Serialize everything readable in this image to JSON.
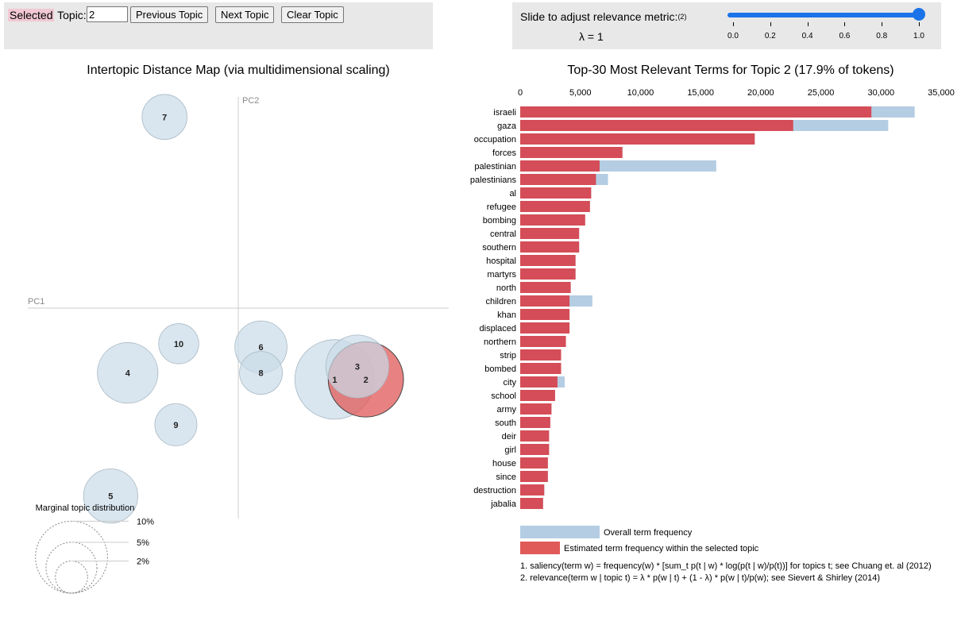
{
  "topic_panel": {
    "selected_prefix": "Selected",
    "topic_word": " Topic: ",
    "topic_value": "2",
    "prev_label": "Previous Topic",
    "next_label": "Next Topic",
    "clear_label": "Clear Topic"
  },
  "slider_panel": {
    "title": "Slide to adjust relevance metric:",
    "footnote_ref": "(2)",
    "lambda_text": "λ = 1",
    "lambda_value": 1.0,
    "ticks": [
      "0.0",
      "0.2",
      "0.4",
      "0.6",
      "0.8",
      "1.0"
    ]
  },
  "colors": {
    "overall": "#b4cde3",
    "selected": "#d44d58",
    "selected_legend": "#e05a5a",
    "bubble_fill": "#c9dbe8",
    "bubble_selected": "#e05858",
    "panel_bg": "#e8e8e8"
  },
  "chart_data": [
    {
      "type": "scatter",
      "title": "Intertopic Distance Map (via multidimensional scaling)",
      "xlabel": "PC1",
      "ylabel": "PC2",
      "selected_topic": 2,
      "topics": [
        {
          "id": 1,
          "x": 0.34,
          "y": -0.22,
          "share": 20.0
        },
        {
          "id": 2,
          "x": 0.45,
          "y": -0.22,
          "share": 17.9
        },
        {
          "id": 3,
          "x": 0.42,
          "y": -0.18,
          "share": 12.5
        },
        {
          "id": 4,
          "x": -0.39,
          "y": -0.2,
          "share": 11.6
        },
        {
          "id": 5,
          "x": -0.45,
          "y": -0.58,
          "share": 9.3
        },
        {
          "id": 6,
          "x": 0.08,
          "y": -0.12,
          "share": 8.6
        },
        {
          "id": 7,
          "x": -0.26,
          "y": 0.59,
          "share": 6.4
        },
        {
          "id": 8,
          "x": 0.08,
          "y": -0.2,
          "share": 5.8
        },
        {
          "id": 9,
          "x": -0.22,
          "y": -0.36,
          "share": 5.6
        },
        {
          "id": 10,
          "x": -0.21,
          "y": -0.11,
          "share": 5.1
        }
      ],
      "marginal": {
        "title": "Marginal topic distribution",
        "levels": [
          {
            "label": "2%",
            "share": 2
          },
          {
            "label": "5%",
            "share": 5
          },
          {
            "label": "10%",
            "share": 10
          }
        ]
      }
    },
    {
      "type": "bar",
      "orientation": "horizontal",
      "title": "Top-30 Most Relevant Terms for Topic 2 (17.9% of tokens)",
      "xlim": [
        0,
        35000
      ],
      "xticks": [
        "0",
        "5,000",
        "10,000",
        "15,000",
        "20,000",
        "25,000",
        "30,000",
        "35,000"
      ],
      "categories": [
        "israeli",
        "gaza",
        "occupation",
        "forces",
        "palestinian",
        "palestinians",
        "al",
        "refugee",
        "bombing",
        "central",
        "southern",
        "hospital",
        "martyrs",
        "north",
        "children",
        "khan",
        "displaced",
        "northern",
        "strip",
        "bombed",
        "city",
        "school",
        "army",
        "south",
        "deir",
        "girl",
        "house",
        "since",
        "destruction",
        "jabalia"
      ],
      "series": [
        {
          "name": "Overall term frequency",
          "values": [
            32800,
            30600,
            19500,
            8500,
            16300,
            7300,
            5900,
            5800,
            5400,
            4900,
            4900,
            4600,
            4600,
            4200,
            6000,
            4100,
            4100,
            3800,
            3400,
            3400,
            3700,
            2900,
            2600,
            2500,
            2400,
            2400,
            2300,
            2300,
            2000,
            1900
          ]
        },
        {
          "name": "Estimated term frequency within the selected topic",
          "values": [
            29200,
            22700,
            19500,
            8500,
            6600,
            6300,
            5900,
            5800,
            5400,
            4900,
            4900,
            4600,
            4600,
            4200,
            4100,
            4100,
            4100,
            3800,
            3400,
            3400,
            3100,
            2900,
            2600,
            2500,
            2400,
            2400,
            2300,
            2300,
            2000,
            1900
          ]
        }
      ],
      "footnotes": [
        "1. saliency(term w) = frequency(w) * [sum_t p(t | w) * log(p(t | w)/p(t))] for topics t; see Chuang et. al (2012)",
        "2. relevance(term w | topic t) = λ * p(w | t) + (1 - λ) * p(w | t)/p(w); see Sievert & Shirley (2014)"
      ]
    }
  ]
}
